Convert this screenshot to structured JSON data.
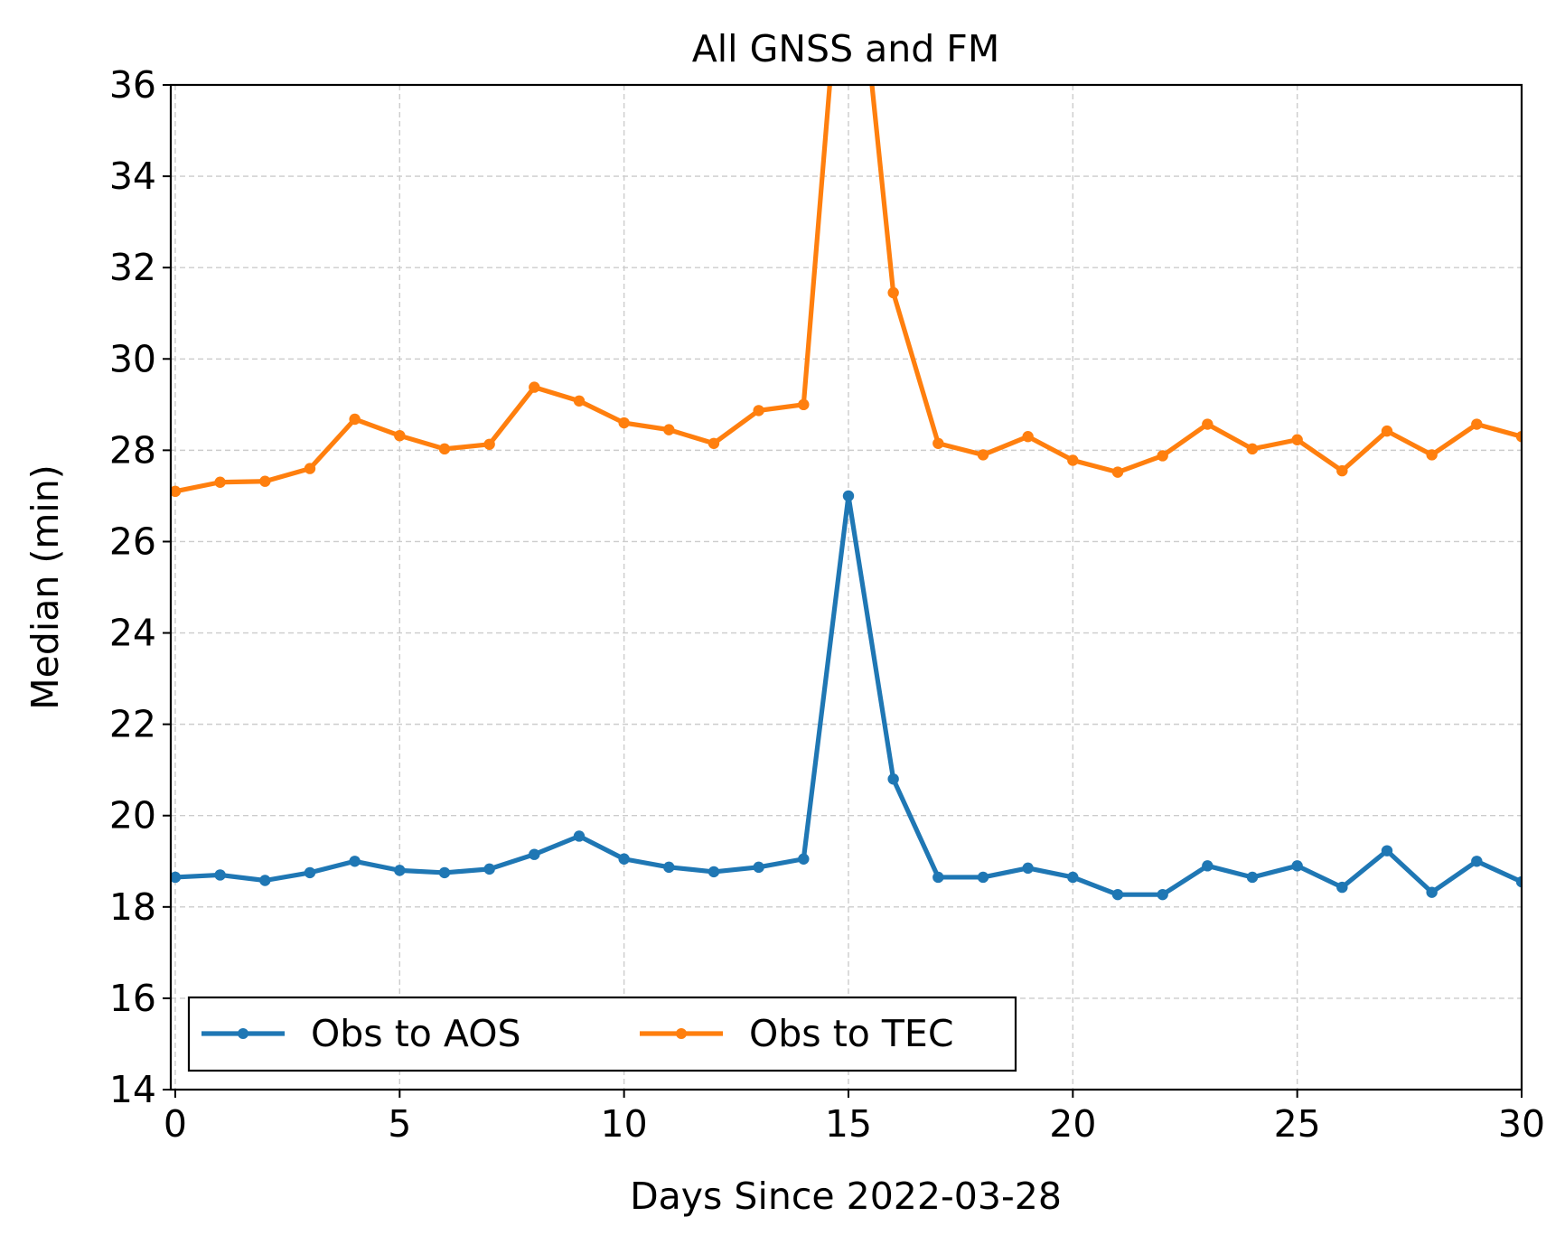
{
  "chart_data": {
    "type": "line",
    "title": "All GNSS and FM",
    "xlabel": "Days Since 2022-03-28",
    "ylabel": "Median (min)",
    "xlim": [
      -0.1,
      30
    ],
    "ylim": [
      14,
      36
    ],
    "xticks": [
      0,
      5,
      10,
      15,
      20,
      25,
      30
    ],
    "yticks": [
      14,
      16,
      18,
      20,
      22,
      24,
      26,
      28,
      30,
      32,
      34,
      36
    ],
    "grid": true,
    "legend_position": "lower-left",
    "x": [
      0,
      1,
      2,
      3,
      4,
      5,
      6,
      7,
      8,
      9,
      10,
      11,
      12,
      13,
      14,
      15,
      16,
      17,
      18,
      19,
      20,
      21,
      22,
      23,
      24,
      25,
      26,
      27,
      28,
      29,
      30
    ],
    "series": [
      {
        "name": "Obs to AOS",
        "color": "#1f77b4",
        "values": [
          18.65,
          18.7,
          18.58,
          18.75,
          19.0,
          18.8,
          18.75,
          18.83,
          19.15,
          19.55,
          19.05,
          18.87,
          18.77,
          18.87,
          19.05,
          27.0,
          20.8,
          18.65,
          18.65,
          18.85,
          18.65,
          18.27,
          18.27,
          18.9,
          18.65,
          18.9,
          18.43,
          19.23,
          18.32,
          19.0,
          18.55
        ]
      },
      {
        "name": "Obs to TEC",
        "color": "#ff7f0e",
        "values": [
          27.1,
          27.3,
          27.32,
          27.6,
          28.68,
          28.32,
          28.03,
          28.13,
          29.38,
          29.08,
          28.6,
          28.45,
          28.15,
          28.87,
          29.0,
          41.0,
          31.45,
          28.15,
          27.9,
          28.3,
          27.78,
          27.52,
          27.88,
          28.57,
          28.03,
          28.23,
          27.55,
          28.42,
          27.9,
          28.57,
          28.3
        ]
      }
    ]
  }
}
